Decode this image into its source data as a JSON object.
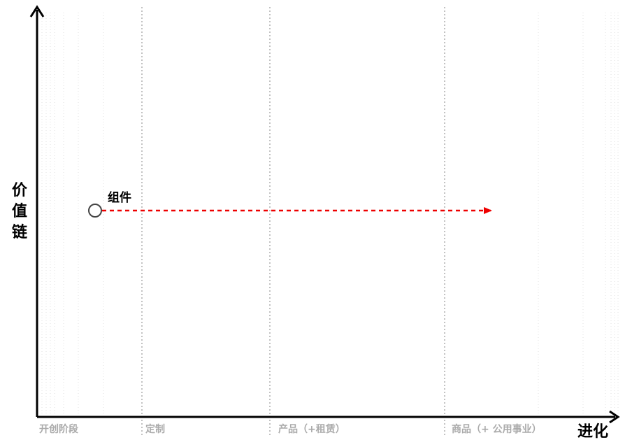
{
  "map": {
    "y_axis_title": "价值链",
    "x_axis_title": "进化",
    "stages": [
      "开创阶段",
      "定制",
      "产品（+租赁）",
      "商品（+ 公用事业）"
    ]
  },
  "components": [
    {
      "name": "组件",
      "evolution_from": 0.1,
      "evolution_to": 0.77
    }
  ],
  "colors": {
    "axis": "#000000",
    "grid": "#b0b0b0",
    "stage_label": "#aaaaaa",
    "movement_arrow": "#ee0000",
    "node_stroke": "#444444"
  }
}
